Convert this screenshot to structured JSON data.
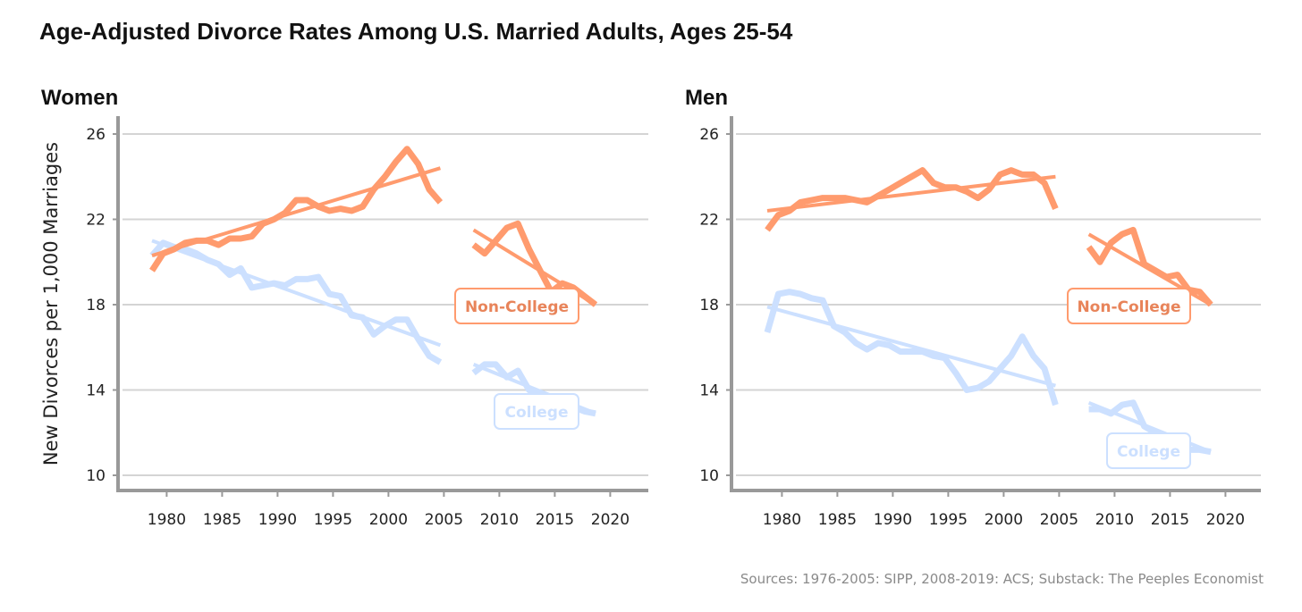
{
  "title": "Age-Adjusted Divorce Rates Among U.S. Married Adults, Ages 25-54",
  "source": "Sources: 1976-2005: SIPP, 2008-2019: ACS; Substack: The Peeples Economist",
  "colors": {
    "non_college": "#FF9B6E",
    "college": "#CCE0FF"
  },
  "chart_data": [
    {
      "type": "line",
      "title": "Women",
      "ylabel": "New Divorces per 1,000 Marriages",
      "xlabel": "",
      "ylim": [
        10,
        26.5
      ],
      "xlim": [
        1977,
        2023
      ],
      "yticks": [
        "10",
        "14",
        "18",
        "22",
        "26"
      ],
      "xticks": [
        "1980",
        "1985",
        "1990",
        "1995",
        "2000",
        "2005",
        "2010",
        "2015",
        "2020"
      ],
      "grid": true,
      "labels": {
        "non_college": "Non-College",
        "college": "College"
      },
      "series": [
        {
          "name": "Non-College",
          "period": "1979-2005",
          "x": [
            1979,
            1980,
            1981,
            1982,
            1983,
            1984,
            1985,
            1986,
            1987,
            1988,
            1989,
            1990,
            1991,
            1992,
            1993,
            1994,
            1995,
            1996,
            1997,
            1998,
            1999,
            2000,
            2001,
            2002,
            2003,
            2004,
            2005
          ],
          "values": [
            19.6,
            20.4,
            20.6,
            20.9,
            21.0,
            21.0,
            20.8,
            21.1,
            21.1,
            21.2,
            21.8,
            22.0,
            22.3,
            22.9,
            22.9,
            22.6,
            22.4,
            22.5,
            22.4,
            22.6,
            23.4,
            24.0,
            24.7,
            25.3,
            24.6,
            23.4,
            22.8
          ],
          "trend": [
            20.3,
            24.4
          ]
        },
        {
          "name": "Non-College",
          "period": "2008-2019",
          "x": [
            2008,
            2009,
            2010,
            2011,
            2012,
            2013,
            2014,
            2015,
            2016,
            2017,
            2018,
            2019
          ],
          "values": [
            20.8,
            20.4,
            21.0,
            21.6,
            21.8,
            20.6,
            19.6,
            18.6,
            19.0,
            18.8,
            18.4,
            18.0
          ],
          "trend": [
            21.5,
            18.0
          ]
        },
        {
          "name": "College",
          "period": "1979-2005",
          "x": [
            1979,
            1980,
            1981,
            1982,
            1983,
            1984,
            1985,
            1986,
            1987,
            1988,
            1989,
            1990,
            1991,
            1992,
            1993,
            1994,
            1995,
            1996,
            1997,
            1998,
            1999,
            2000,
            2001,
            2002,
            2003,
            2004,
            2005
          ],
          "values": [
            20.3,
            20.9,
            20.7,
            20.6,
            20.4,
            20.1,
            19.9,
            19.4,
            19.7,
            18.8,
            18.9,
            19.0,
            18.9,
            19.2,
            19.2,
            19.3,
            18.5,
            18.4,
            17.5,
            17.4,
            16.6,
            17.0,
            17.3,
            17.3,
            16.4,
            15.6,
            15.3
          ],
          "trend": [
            21.0,
            16.1
          ]
        },
        {
          "name": "College",
          "period": "2008-2019",
          "x": [
            2008,
            2009,
            2010,
            2011,
            2012,
            2013,
            2014,
            2015,
            2016,
            2017,
            2018,
            2019
          ],
          "values": [
            14.8,
            15.2,
            15.2,
            14.6,
            14.9,
            14.0,
            13.8,
            13.5,
            13.3,
            13.2,
            13.0,
            12.9
          ],
          "trend": [
            15.2,
            12.9
          ]
        }
      ]
    },
    {
      "type": "line",
      "title": "Men",
      "ylabel": "",
      "xlabel": "",
      "ylim": [
        10,
        26.5
      ],
      "xlim": [
        1977,
        2023
      ],
      "yticks": [
        "10",
        "14",
        "18",
        "22",
        "26"
      ],
      "xticks": [
        "1980",
        "1985",
        "1990",
        "1995",
        "2000",
        "2005",
        "2010",
        "2015",
        "2020"
      ],
      "grid": true,
      "labels": {
        "non_college": "Non-College",
        "college": "College"
      },
      "series": [
        {
          "name": "Non-College",
          "period": "1979-2005",
          "x": [
            1979,
            1980,
            1981,
            1982,
            1983,
            1984,
            1985,
            1986,
            1987,
            1988,
            1989,
            1990,
            1991,
            1992,
            1993,
            1994,
            1995,
            1996,
            1997,
            1998,
            1999,
            2000,
            2001,
            2002,
            2003,
            2004,
            2005
          ],
          "values": [
            21.5,
            22.2,
            22.4,
            22.8,
            22.9,
            23.0,
            23.0,
            23.0,
            22.9,
            22.8,
            23.1,
            23.4,
            23.7,
            24.0,
            24.3,
            23.7,
            23.5,
            23.5,
            23.3,
            23.0,
            23.4,
            24.1,
            24.3,
            24.1,
            24.1,
            23.7,
            22.5
          ],
          "trend": [
            22.4,
            24.0
          ]
        },
        {
          "name": "Non-College",
          "period": "2008-2019",
          "x": [
            2008,
            2009,
            2010,
            2011,
            2012,
            2013,
            2014,
            2015,
            2016,
            2017,
            2018,
            2019
          ],
          "values": [
            20.7,
            20.0,
            20.9,
            21.3,
            21.5,
            19.9,
            19.6,
            19.3,
            19.4,
            18.7,
            18.6,
            18.0
          ],
          "trend": [
            21.3,
            18.0
          ]
        },
        {
          "name": "College",
          "period": "1979-2005",
          "x": [
            1979,
            1980,
            1981,
            1982,
            1983,
            1984,
            1985,
            1986,
            1987,
            1988,
            1989,
            1990,
            1991,
            1992,
            1993,
            1994,
            1995,
            1996,
            1997,
            1998,
            1999,
            2000,
            2001,
            2002,
            2003,
            2004,
            2005
          ],
          "values": [
            16.7,
            18.5,
            18.6,
            18.5,
            18.3,
            18.2,
            17.0,
            16.7,
            16.2,
            15.9,
            16.2,
            16.1,
            15.8,
            15.8,
            15.8,
            15.6,
            15.5,
            14.8,
            14.0,
            14.1,
            14.4,
            15.0,
            15.6,
            16.5,
            15.6,
            15.0,
            13.3
          ],
          "trend": [
            17.9,
            14.2
          ]
        },
        {
          "name": "College",
          "period": "2008-2019",
          "x": [
            2008,
            2009,
            2010,
            2011,
            2012,
            2013,
            2014,
            2015,
            2016,
            2017,
            2018,
            2019
          ],
          "values": [
            13.1,
            13.1,
            12.9,
            13.3,
            13.4,
            12.3,
            12.0,
            11.7,
            11.5,
            11.2,
            11.2,
            11.1
          ],
          "trend": [
            13.4,
            11.1
          ]
        }
      ]
    }
  ]
}
